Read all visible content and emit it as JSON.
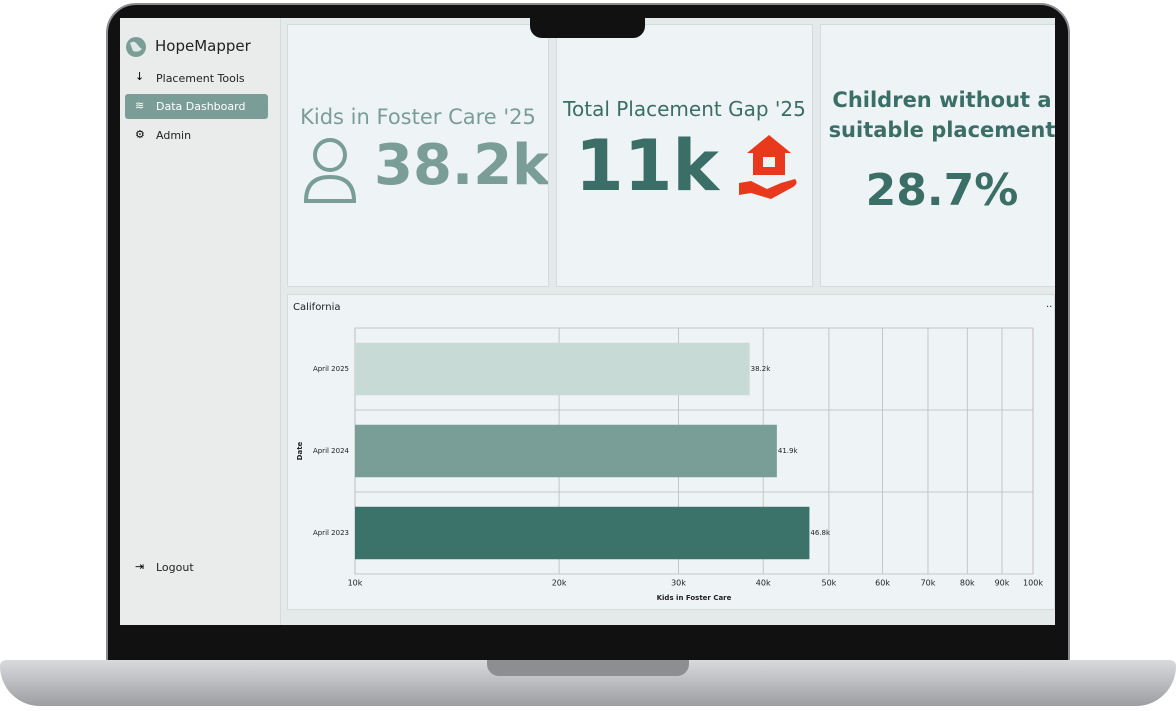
{
  "sidebar": {
    "brand": "HopeMapper",
    "nav": [
      "Placement Tools",
      "Data Dashboard",
      "Admin"
    ],
    "active": 1,
    "logout": "Logout"
  },
  "cards": [
    {
      "title": "Kids in Foster Care '25",
      "value": "38.2k"
    },
    {
      "title": "Total Placement Gap '25",
      "value": "11k"
    },
    {
      "title": "Children without a suitable placement",
      "value": "28.7%"
    }
  ],
  "chart_data": {
    "type": "bar",
    "orientation": "horizontal",
    "title": "California",
    "categories": [
      "April 2025",
      "April 2024",
      "April 2023"
    ],
    "values": [
      38200,
      41900,
      46800
    ],
    "value_labels": [
      "38.2k",
      "41.9k",
      "46.8k"
    ],
    "colors": [
      "#c8dad5",
      "#789e97",
      "#3b736b"
    ],
    "xlabel": "Kids in Foster Care",
    "ylabel": "Date",
    "xscale": "log",
    "xlim": [
      10000,
      100000
    ],
    "xticks": [
      {
        "value": 10000,
        "label": "10k"
      },
      {
        "value": 20000,
        "label": "20k"
      },
      {
        "value": 30000,
        "label": "30k"
      },
      {
        "value": 40000,
        "label": "40k"
      },
      {
        "value": 50000,
        "label": "50k"
      },
      {
        "value": 60000,
        "label": "60k"
      },
      {
        "value": 70000,
        "label": "70k"
      },
      {
        "value": 80000,
        "label": "80k"
      },
      {
        "value": 90000,
        "label": "90k"
      },
      {
        "value": 100000,
        "label": "100k"
      }
    ],
    "grid": true
  }
}
